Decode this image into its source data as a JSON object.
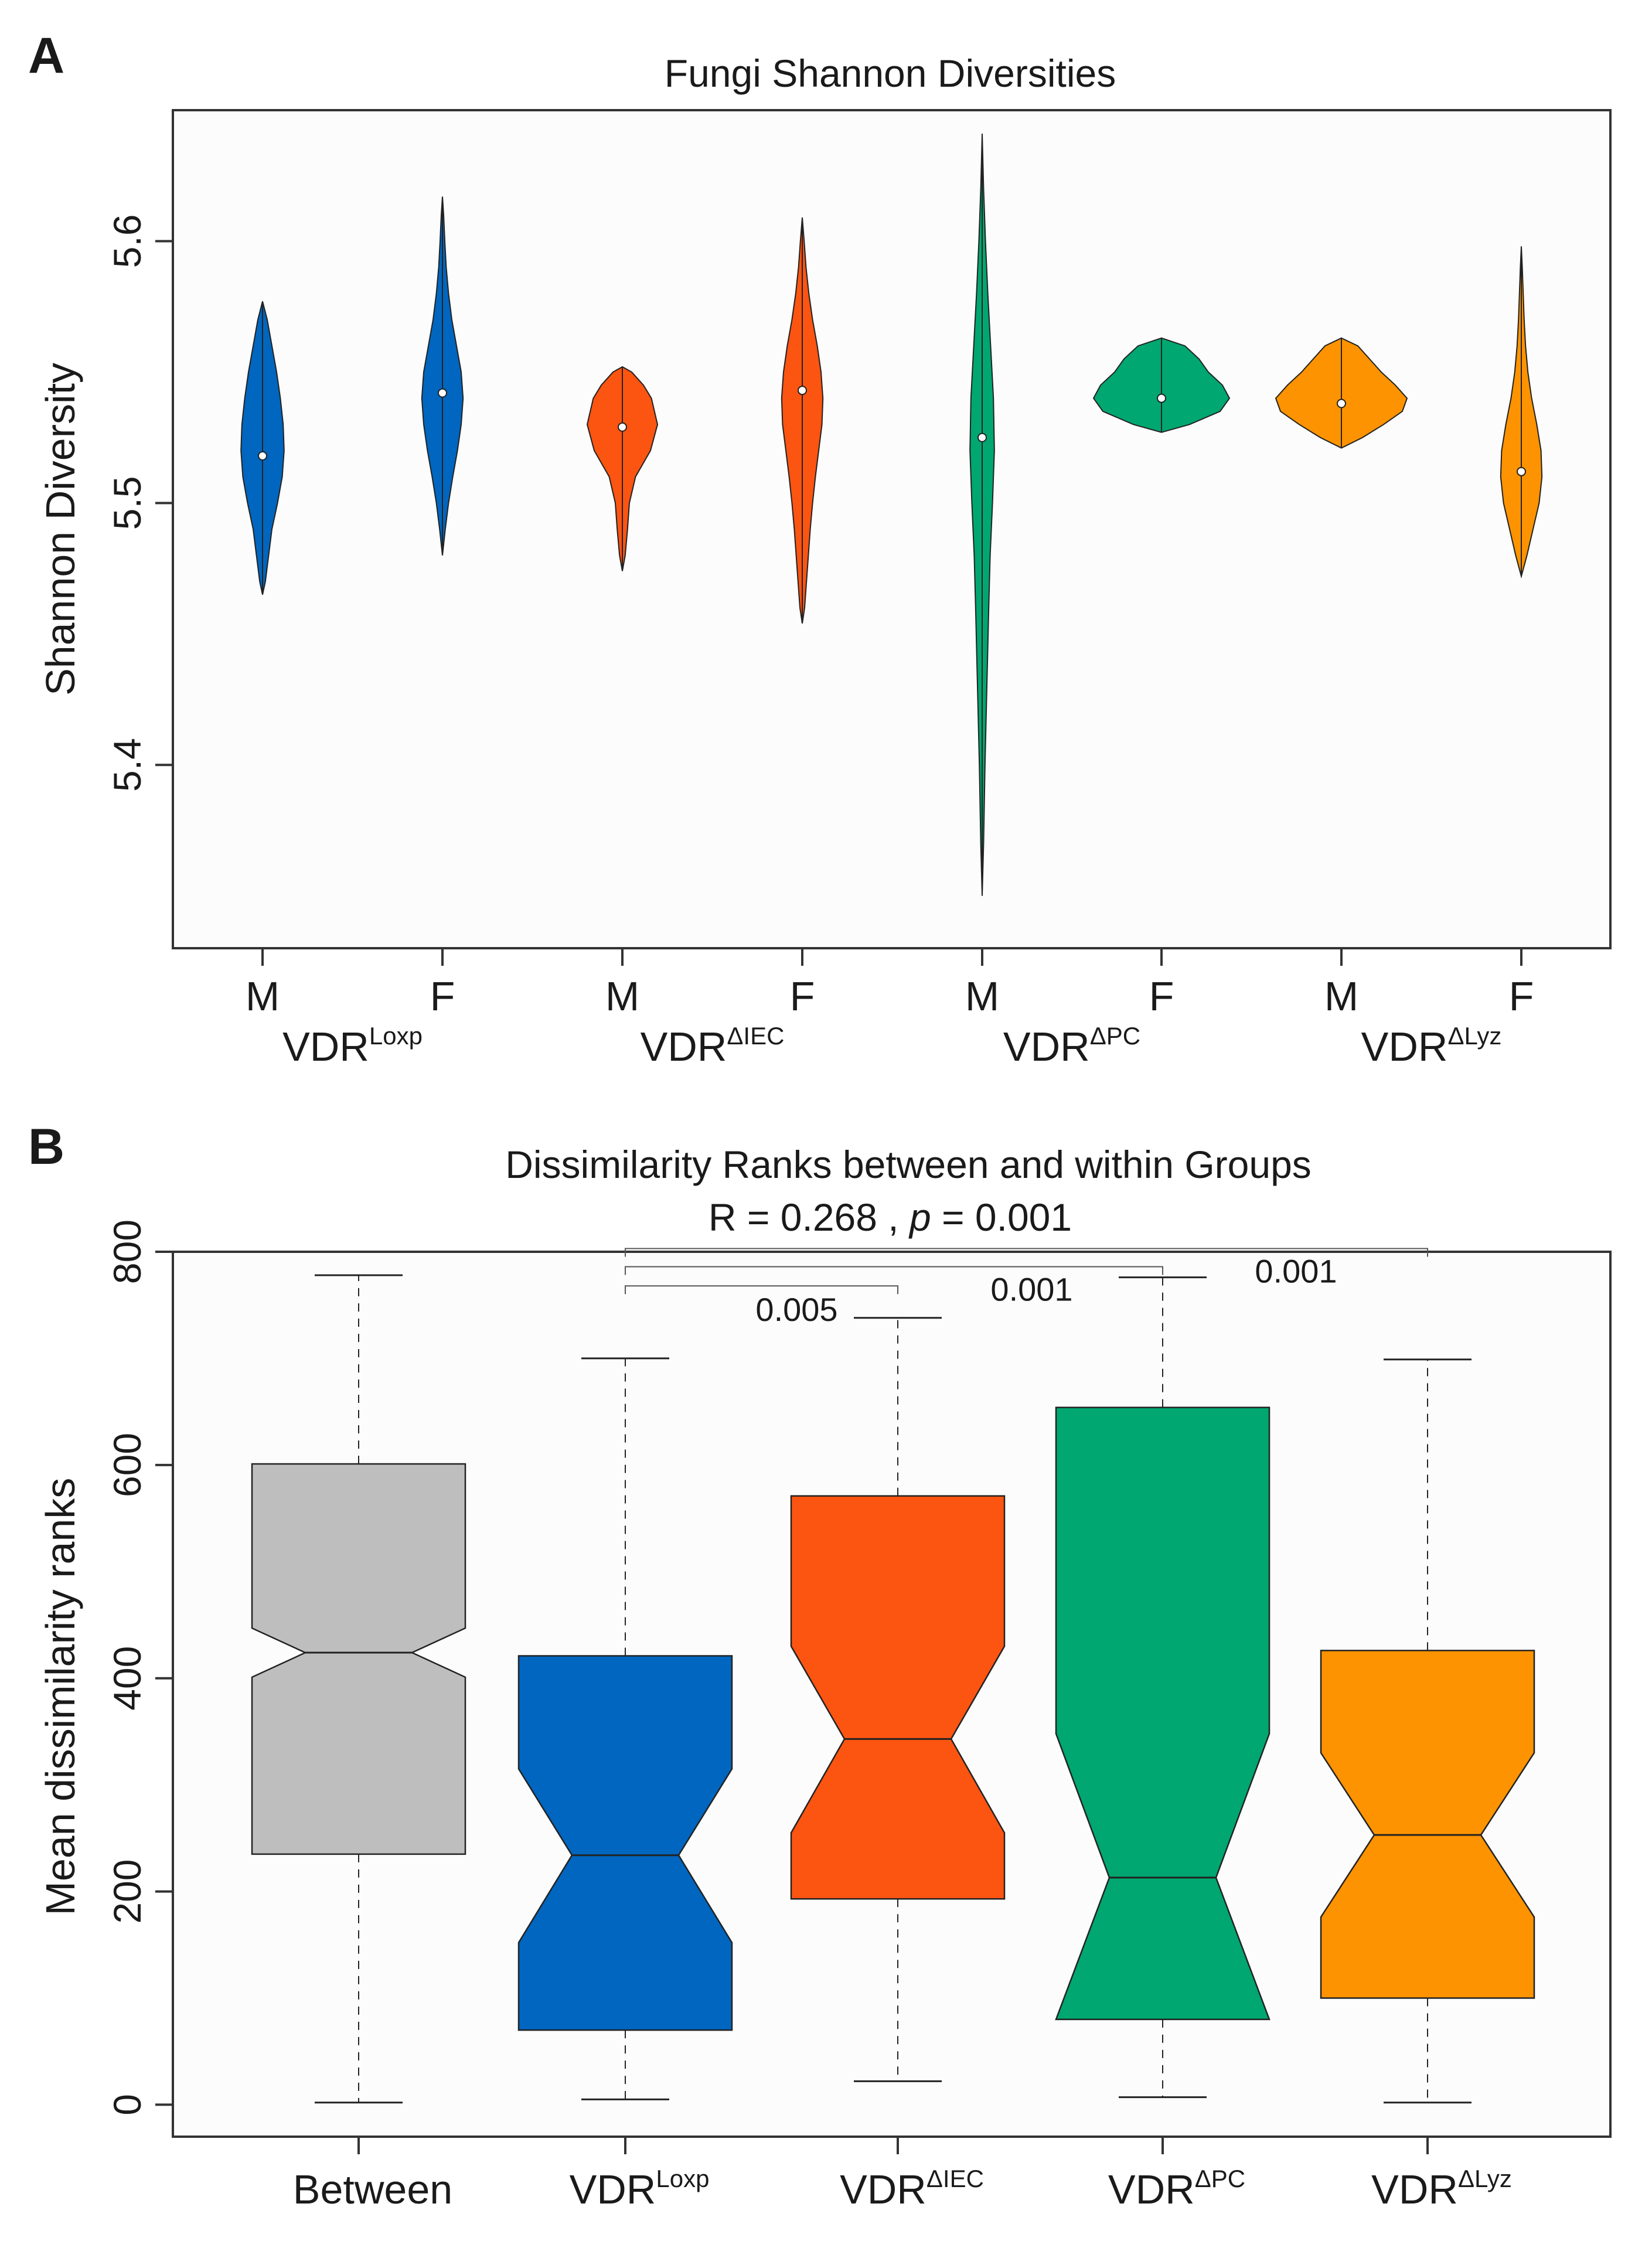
{
  "figure": {
    "panels": [
      {
        "label": "A"
      },
      {
        "label": "B"
      }
    ]
  },
  "colors": {
    "loxp": "#0066bf",
    "iec": "#fc5411",
    "pc": "#00a770",
    "lyz": "#fd9300",
    "between": "#bebebe",
    "plot_bg": "#fcfcfc",
    "axis": "#333333"
  },
  "chart_data": [
    {
      "type": "violin",
      "title": "Fungi Shannon Diversities",
      "ylabel": "Shannon Diversity",
      "xlabel": "",
      "ylim": [
        5.33,
        5.65
      ],
      "yticks": [
        5.4,
        5.5,
        5.6
      ],
      "ytick_labels": [
        "5.4",
        "5.5",
        "5.6"
      ],
      "groups": [
        {
          "base": "VDR",
          "sup": "Loxp",
          "color_key": "loxp"
        },
        {
          "base": "VDR",
          "sup": "ΔIEC",
          "color_key": "iec"
        },
        {
          "base": "VDR",
          "sup": "ΔPC",
          "color_key": "pc"
        },
        {
          "base": "VDR",
          "sup": "ΔLyz",
          "color_key": "lyz"
        }
      ],
      "series": [
        {
          "name": "VDR Loxp M",
          "sex": "M",
          "group": 0,
          "min": 5.465,
          "max": 5.577,
          "median": 5.518,
          "density": [
            [
              5.465,
              0.0
            ],
            [
              5.47,
              0.06
            ],
            [
              5.48,
              0.13
            ],
            [
              5.49,
              0.2
            ],
            [
              5.5,
              0.32
            ],
            [
              5.51,
              0.42
            ],
            [
              5.52,
              0.46
            ],
            [
              5.53,
              0.44
            ],
            [
              5.54,
              0.38
            ],
            [
              5.55,
              0.3
            ],
            [
              5.56,
              0.2
            ],
            [
              5.57,
              0.1
            ],
            [
              5.577,
              0.0
            ]
          ]
        },
        {
          "name": "VDR Loxp F",
          "sex": "F",
          "group": 0,
          "min": 5.48,
          "max": 5.617,
          "median": 5.542,
          "density": [
            [
              5.48,
              0.0
            ],
            [
              5.49,
              0.06
            ],
            [
              5.5,
              0.13
            ],
            [
              5.51,
              0.22
            ],
            [
              5.52,
              0.32
            ],
            [
              5.53,
              0.4
            ],
            [
              5.54,
              0.44
            ],
            [
              5.55,
              0.4
            ],
            [
              5.56,
              0.3
            ],
            [
              5.57,
              0.2
            ],
            [
              5.58,
              0.13
            ],
            [
              5.59,
              0.08
            ],
            [
              5.6,
              0.05
            ],
            [
              5.61,
              0.025
            ],
            [
              5.617,
              0.0
            ]
          ]
        },
        {
          "name": "VDR ΔIEC M",
          "sex": "M",
          "group": 1,
          "min": 5.474,
          "max": 5.552,
          "median": 5.529,
          "density": [
            [
              5.474,
              0.0
            ],
            [
              5.48,
              0.06
            ],
            [
              5.49,
              0.11
            ],
            [
              5.5,
              0.15
            ],
            [
              5.51,
              0.28
            ],
            [
              5.52,
              0.6
            ],
            [
              5.53,
              0.75
            ],
            [
              5.54,
              0.62
            ],
            [
              5.545,
              0.45
            ],
            [
              5.55,
              0.2
            ],
            [
              5.552,
              0.0
            ]
          ]
        },
        {
          "name": "VDR ΔIEC F",
          "sex": "F",
          "group": 1,
          "min": 5.454,
          "max": 5.609,
          "median": 5.543,
          "density": [
            [
              5.454,
              0.0
            ],
            [
              5.46,
              0.05
            ],
            [
              5.47,
              0.09
            ],
            [
              5.48,
              0.13
            ],
            [
              5.49,
              0.17
            ],
            [
              5.5,
              0.22
            ],
            [
              5.51,
              0.28
            ],
            [
              5.52,
              0.35
            ],
            [
              5.53,
              0.42
            ],
            [
              5.54,
              0.44
            ],
            [
              5.55,
              0.4
            ],
            [
              5.56,
              0.32
            ],
            [
              5.57,
              0.22
            ],
            [
              5.58,
              0.14
            ],
            [
              5.59,
              0.08
            ],
            [
              5.6,
              0.04
            ],
            [
              5.609,
              0.0
            ]
          ]
        },
        {
          "name": "VDR ΔPC M",
          "sex": "M",
          "group": 2,
          "min": 5.35,
          "max": 5.641,
          "median": 5.525,
          "density": [
            [
              5.35,
              0.0
            ],
            [
              5.37,
              0.03
            ],
            [
              5.4,
              0.06
            ],
            [
              5.43,
              0.1
            ],
            [
              5.46,
              0.14
            ],
            [
              5.48,
              0.17
            ],
            [
              5.5,
              0.22
            ],
            [
              5.52,
              0.26
            ],
            [
              5.54,
              0.24
            ],
            [
              5.56,
              0.18
            ],
            [
              5.58,
              0.12
            ],
            [
              5.6,
              0.07
            ],
            [
              5.62,
              0.03
            ],
            [
              5.641,
              0.0
            ]
          ]
        },
        {
          "name": "VDR ΔPC F",
          "sex": "F",
          "group": 2,
          "min": 5.527,
          "max": 5.563,
          "median": 5.54,
          "density": [
            [
              5.527,
              0.0
            ],
            [
              5.53,
              0.6
            ],
            [
              5.535,
              1.25
            ],
            [
              5.54,
              1.45
            ],
            [
              5.545,
              1.3
            ],
            [
              5.55,
              1.0
            ],
            [
              5.555,
              0.8
            ],
            [
              5.56,
              0.5
            ],
            [
              5.563,
              0.0
            ]
          ]
        },
        {
          "name": "VDR ΔLyz M",
          "sex": "M",
          "group": 3,
          "min": 5.521,
          "max": 5.563,
          "median": 5.538,
          "density": [
            [
              5.521,
              0.0
            ],
            [
              5.525,
              0.45
            ],
            [
              5.53,
              0.9
            ],
            [
              5.535,
              1.3
            ],
            [
              5.54,
              1.4
            ],
            [
              5.545,
              1.15
            ],
            [
              5.55,
              0.85
            ],
            [
              5.555,
              0.6
            ],
            [
              5.56,
              0.35
            ],
            [
              5.563,
              0.0
            ]
          ]
        },
        {
          "name": "VDR ΔLyz F",
          "sex": "F",
          "group": 3,
          "min": 5.472,
          "max": 5.598,
          "median": 5.512,
          "density": [
            [
              5.472,
              0.0
            ],
            [
              5.48,
              0.12
            ],
            [
              5.49,
              0.25
            ],
            [
              5.5,
              0.38
            ],
            [
              5.51,
              0.44
            ],
            [
              5.52,
              0.42
            ],
            [
              5.53,
              0.33
            ],
            [
              5.54,
              0.22
            ],
            [
              5.55,
              0.14
            ],
            [
              5.56,
              0.09
            ],
            [
              5.57,
              0.06
            ],
            [
              5.58,
              0.04
            ],
            [
              5.59,
              0.02
            ],
            [
              5.598,
              0.0
            ]
          ]
        }
      ]
    },
    {
      "type": "box",
      "title": "Dissimilarity Ranks between and within Groups",
      "stat_line": {
        "r_prefix": "R =  0.268 ,  ",
        "p_symbol": "p",
        "p_suffix": " =  0.001"
      },
      "ylabel": "Mean dissimilarity ranks",
      "xlabel": "",
      "ylim": [
        -30,
        800
      ],
      "yticks": [
        0,
        200,
        400,
        600,
        800
      ],
      "ytick_labels": [
        "0",
        "200",
        "400",
        "600",
        "800"
      ],
      "categories": [
        {
          "base": "Between",
          "sup": ""
        },
        {
          "base": "VDR",
          "sup": "Loxp"
        },
        {
          "base": "VDR",
          "sup": "ΔIEC"
        },
        {
          "base": "VDR",
          "sup": "ΔPC"
        },
        {
          "base": "VDR",
          "sup": "ΔLyz"
        }
      ],
      "boxes": [
        {
          "name": "Between",
          "color_key": "between",
          "min": 2,
          "q1": 235,
          "median": 424,
          "q3": 601,
          "max": 778,
          "notch_low": 401,
          "notch_high": 447
        },
        {
          "name": "VDR Loxp",
          "color_key": "loxp",
          "min": 5,
          "q1": 70,
          "median": 234,
          "q3": 421,
          "max": 700,
          "notch_low": 152,
          "notch_high": 315
        },
        {
          "name": "VDR ΔIEC",
          "color_key": "iec",
          "min": 22,
          "q1": 193,
          "median": 343,
          "q3": 571,
          "max": 738,
          "notch_low": 255,
          "notch_high": 430
        },
        {
          "name": "VDR ΔPC",
          "color_key": "pc",
          "min": 7,
          "q1": 80,
          "median": 213,
          "q3": 654,
          "max": 776,
          "notch_low": 80,
          "notch_high": 348
        },
        {
          "name": "VDR ΔLyz",
          "color_key": "lyz",
          "min": 2,
          "q1": 100,
          "median": 253,
          "q3": 426,
          "max": 699,
          "notch_low": 176,
          "notch_high": 330
        }
      ],
      "comparisons": [
        {
          "from": 1,
          "to": 2,
          "label": "0.005",
          "y": 768
        },
        {
          "from": 1,
          "to": 3,
          "label": "0.001",
          "y": 786
        },
        {
          "from": 1,
          "to": 4,
          "label": "0.001",
          "y": 803
        }
      ]
    }
  ]
}
